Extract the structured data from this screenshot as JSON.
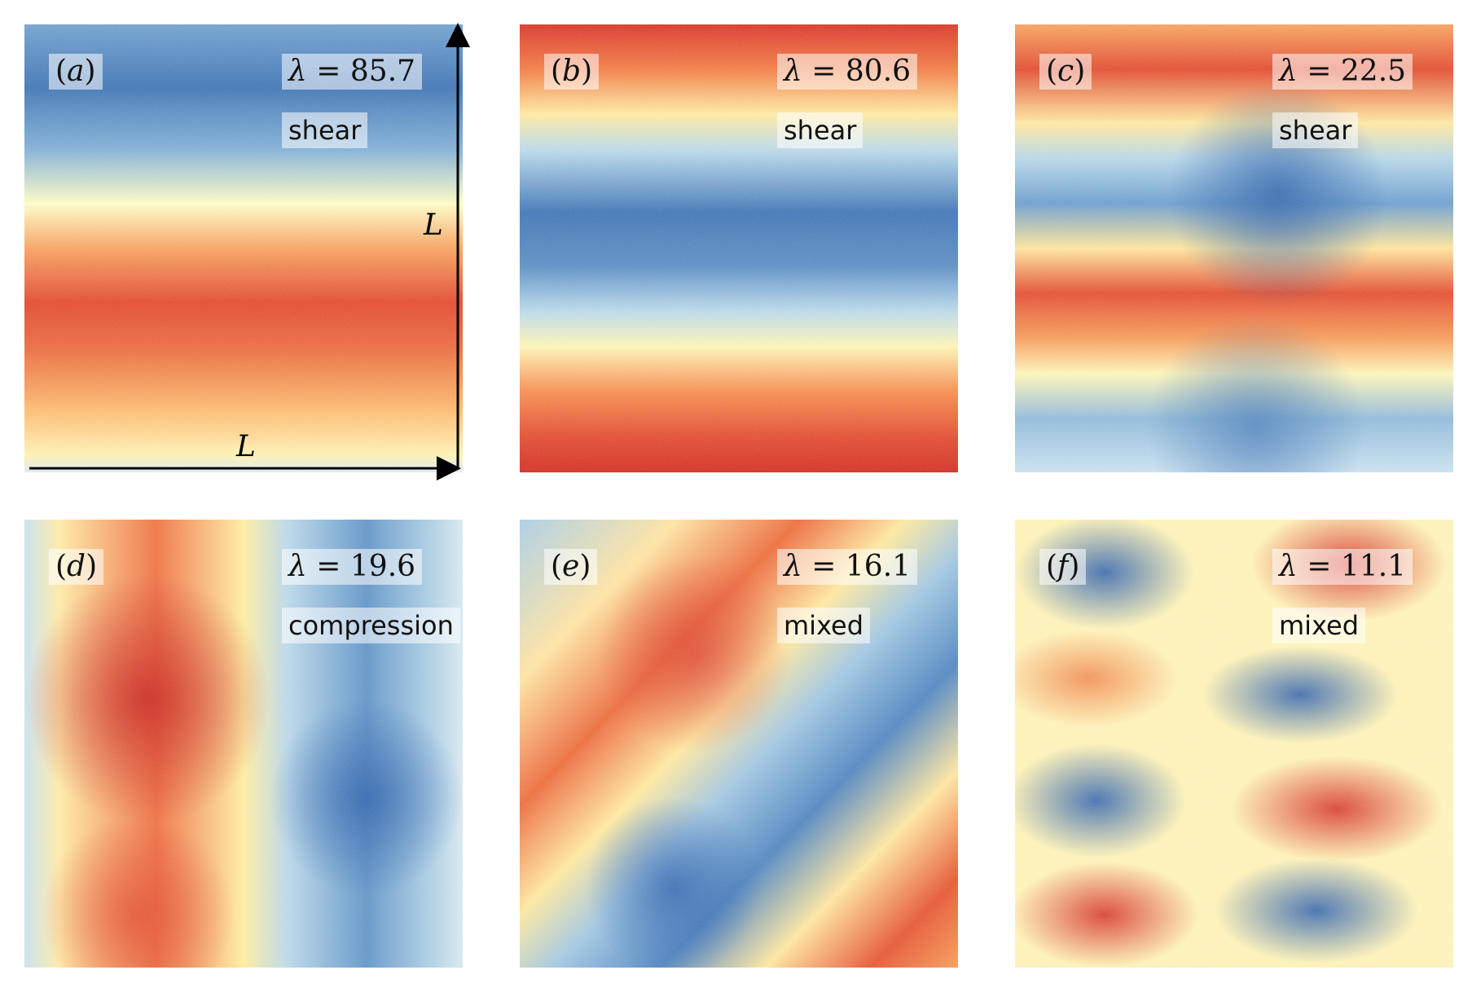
{
  "panels": [
    {
      "id": "a",
      "letter": "a",
      "lambda": "85.7",
      "mode": "shear"
    },
    {
      "id": "b",
      "letter": "b",
      "lambda": "80.6",
      "mode": "shear"
    },
    {
      "id": "c",
      "letter": "c",
      "lambda": "22.5",
      "mode": "shear"
    },
    {
      "id": "d",
      "letter": "d",
      "lambda": "19.6",
      "mode": "compression"
    },
    {
      "id": "e",
      "letter": "e",
      "lambda": "16.1",
      "mode": "mixed"
    },
    {
      "id": "f",
      "letter": "f",
      "lambda": "11.1",
      "mode": "mixed"
    }
  ],
  "axes": {
    "x_label": "L",
    "y_label": "L"
  },
  "colormap": {
    "low": "#2a5fab",
    "mid": "#fdfbc4",
    "high": "#d22a20"
  }
}
